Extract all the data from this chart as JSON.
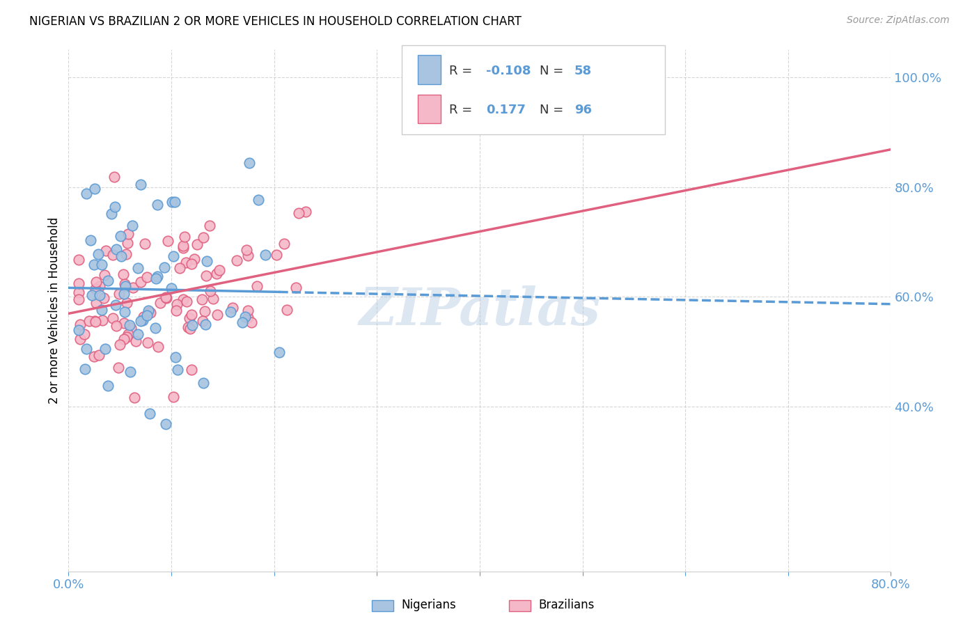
{
  "title": "NIGERIAN VS BRAZILIAN 2 OR MORE VEHICLES IN HOUSEHOLD CORRELATION CHART",
  "source": "Source: ZipAtlas.com",
  "ylabel": "2 or more Vehicles in Household",
  "nigerian_color": "#a8c4e0",
  "nigerian_edge_color": "#5b9bd5",
  "brazilian_color": "#f4b8c8",
  "brazilian_edge_color": "#e06080",
  "nigerian_R": -0.108,
  "nigerian_N": 58,
  "brazilian_R": 0.177,
  "brazilian_N": 96,
  "nigerian_line_color": "#5b9bd5",
  "brazilian_line_color": "#e06080",
  "tick_color": "#5b9bd5",
  "grid_color": "#cccccc",
  "watermark": "ZIPatlas",
  "xlim": [
    0.0,
    0.8
  ],
  "ylim": [
    0.1,
    1.05
  ],
  "xtick_positions": [
    0.0,
    0.1,
    0.2,
    0.3,
    0.4,
    0.5,
    0.6,
    0.7,
    0.8
  ],
  "xtick_labels": [
    "0.0%",
    "",
    "",
    "",
    "",
    "",
    "",
    "",
    "80.0%"
  ],
  "ytick_positions": [
    0.4,
    0.6,
    0.8,
    1.0
  ],
  "ytick_labels": [
    "40.0%",
    "60.0%",
    "80.0%",
    "100.0%"
  ]
}
